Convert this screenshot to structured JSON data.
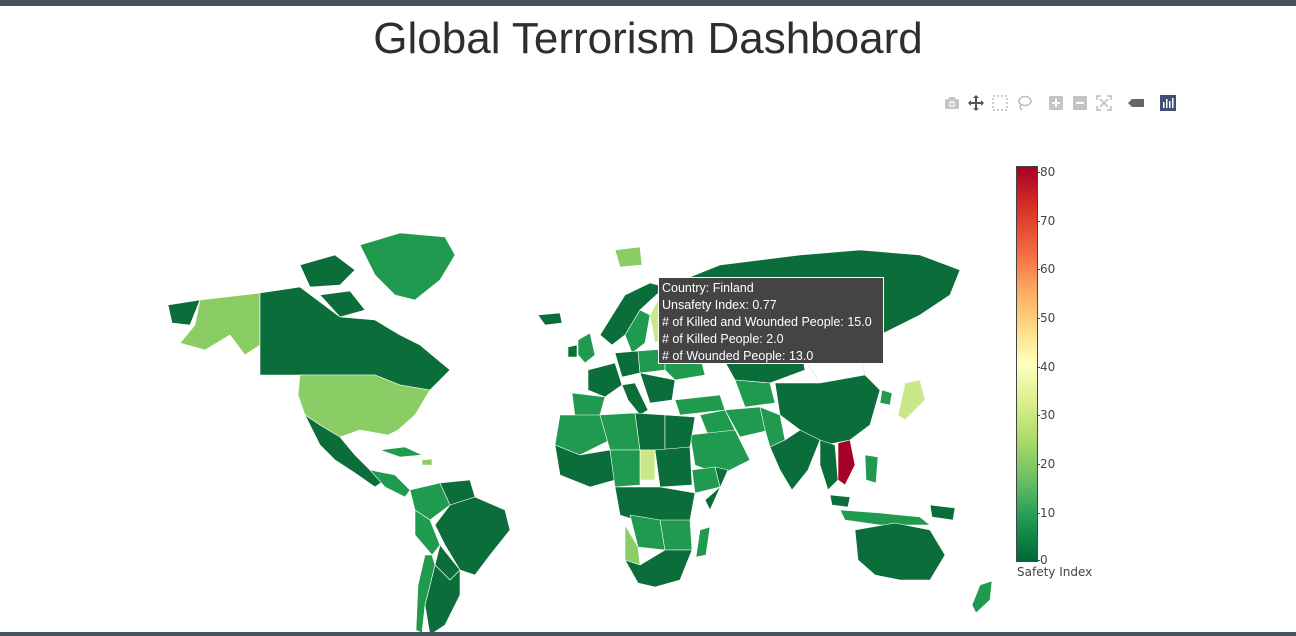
{
  "page": {
    "title": "Global Terrorism Dashboard"
  },
  "modebar": {
    "buttons": [
      "camera-icon",
      "pan-icon",
      "box-select-icon",
      "lasso-select-icon",
      "zoom-in-icon",
      "zoom-out-icon",
      "autoscale-icon",
      "hover-compare-icon",
      "plotly-logo-icon"
    ]
  },
  "colorbar": {
    "title": "Safety Index",
    "ticks": [
      "80",
      "70",
      "60",
      "50",
      "40",
      "30",
      "20",
      "10",
      "0"
    ],
    "colorscale": [
      "#006837",
      "#1a9850",
      "#66bd63",
      "#a6d96a",
      "#d9ef8b",
      "#ffffbf",
      "#fee08b",
      "#fdae61",
      "#f46d43",
      "#d73027",
      "#a50026"
    ]
  },
  "tooltip": {
    "country": "Country: Finland",
    "unsafety": "Unsafety Index: 0.77",
    "killed_wounded": "# of Killed and Wounded People: 15.0",
    "killed": "# of Killed People: 2.0",
    "wounded": "# of Wounded People: 13.0"
  },
  "colors": {
    "header_bar": "#44535e",
    "dark_green": "#0b6e3a",
    "mid_green": "#1f9a4e",
    "light_green": "#8acd64",
    "yellow_green": "#c8e88a",
    "red": "#a50026"
  }
}
